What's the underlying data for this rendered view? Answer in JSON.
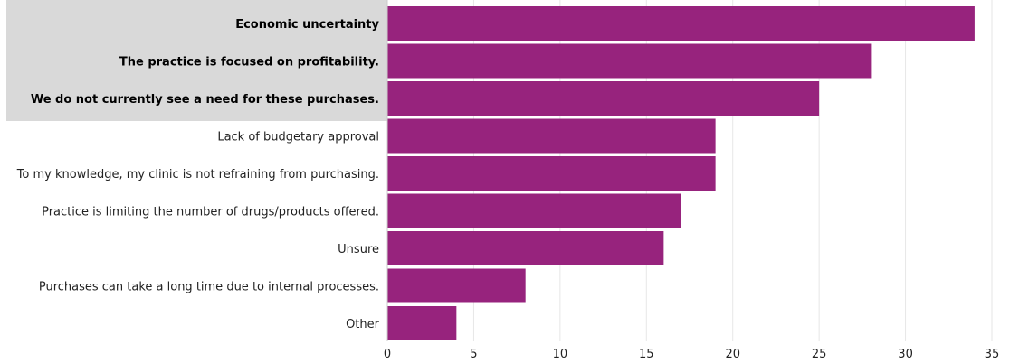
{
  "chart_data": {
    "type": "bar",
    "orientation": "horizontal",
    "categories": [
      "Economic uncertainty",
      "The practice is focused on profitability.",
      "We do not currently see a need for these purchases.",
      "Lack of budgetary approval",
      "To my knowledge, my clinic is not refraining from purchasing.",
      "Practice is limiting the number of drugs/products offered.",
      "Unsure",
      "Purchases can take a long time due to internal processes.",
      "Other"
    ],
    "values": [
      34,
      28,
      25,
      19,
      19,
      17,
      16,
      8,
      4
    ],
    "highlighted": [
      true,
      true,
      true,
      false,
      false,
      false,
      false,
      false,
      false
    ],
    "xlim": [
      0,
      35
    ],
    "xticks": [
      0,
      5,
      10,
      15,
      20,
      25,
      30,
      35
    ],
    "grid": "vertical",
    "title": "",
    "xlabel": "",
    "ylabel": "",
    "colors": {
      "bar": "#97237d",
      "highlight_band": "#d9d9d9",
      "grid": "#e6e6e6"
    }
  }
}
